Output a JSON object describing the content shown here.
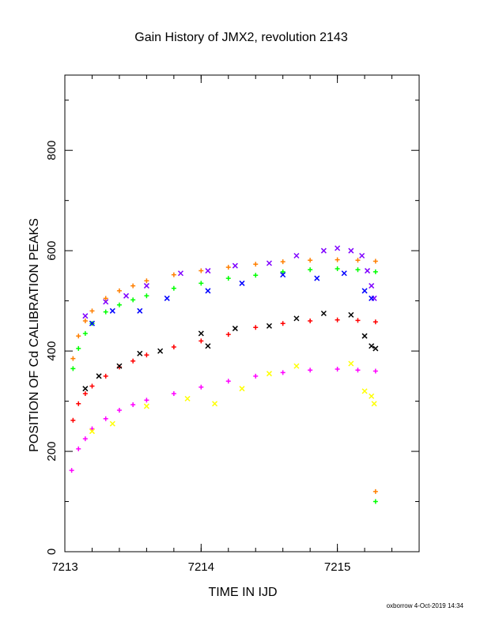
{
  "chart_data": {
    "type": "scatter",
    "title": "Gain History of JMX2, revolution 2143",
    "xlabel": "TIME IN IJD",
    "ylabel": "POSITION OF Cd CALIBRATION PEAKS",
    "footer": "oxborrow  4-Oct-2019 14:34",
    "xlim": [
      7213,
      7215.6
    ],
    "ylim": [
      0,
      950
    ],
    "xticks": [
      7213,
      7214,
      7215
    ],
    "yticks": [
      0,
      200,
      400,
      600,
      800
    ],
    "grid": false,
    "legend": "none",
    "series": [
      {
        "color": "#ff7f00",
        "marker": "+",
        "x": [
          7213.06,
          7213.1,
          7213.15,
          7213.2,
          7213.3,
          7213.4,
          7213.5,
          7213.6,
          7213.8,
          7214.0,
          7214.2,
          7214.4,
          7214.6,
          7214.8,
          7215.0,
          7215.15,
          7215.28
        ],
        "y": [
          385,
          430,
          460,
          480,
          505,
          520,
          530,
          540,
          552,
          560,
          567,
          573,
          578,
          581,
          582,
          581,
          579
        ]
      },
      {
        "color": "#7f00ff",
        "marker": "x",
        "x": [
          7213.15,
          7213.3,
          7213.45,
          7213.6,
          7213.85,
          7214.05,
          7214.25,
          7214.5,
          7214.7,
          7214.9,
          7215.0,
          7215.1,
          7215.18,
          7215.22,
          7215.25,
          7215.27
        ],
        "y": [
          470,
          498,
          510,
          530,
          555,
          560,
          570,
          575,
          590,
          600,
          605,
          600,
          590,
          560,
          530,
          505
        ]
      },
      {
        "color": "#00ff00",
        "marker": "+",
        "x": [
          7213.06,
          7213.1,
          7213.15,
          7213.2,
          7213.3,
          7213.4,
          7213.5,
          7213.6,
          7213.8,
          7214.0,
          7214.2,
          7214.4,
          7214.6,
          7214.8,
          7215.0,
          7215.15,
          7215.28
        ],
        "y": [
          365,
          405,
          435,
          455,
          478,
          492,
          502,
          510,
          525,
          535,
          545,
          551,
          558,
          562,
          564,
          562,
          558
        ]
      },
      {
        "color": "#0000ff",
        "marker": "x",
        "x": [
          7213.2,
          7213.35,
          7213.55,
          7213.75,
          7214.05,
          7214.3,
          7214.6,
          7214.85,
          7215.05,
          7215.2,
          7215.25
        ],
        "y": [
          455,
          480,
          480,
          505,
          520,
          535,
          552,
          545,
          555,
          520,
          505
        ]
      },
      {
        "color": "#ff0000",
        "marker": "+",
        "x": [
          7213.06,
          7213.1,
          7213.15,
          7213.2,
          7213.3,
          7213.4,
          7213.5,
          7213.6,
          7213.8,
          7214.0,
          7214.2,
          7214.4,
          7214.6,
          7214.8,
          7215.0,
          7215.15,
          7215.28
        ],
        "y": [
          262,
          295,
          315,
          330,
          350,
          368,
          380,
          392,
          408,
          420,
          433,
          447,
          455,
          460,
          462,
          461,
          458
        ]
      },
      {
        "color": "#000000",
        "marker": "x",
        "x": [
          7213.15,
          7213.25,
          7213.4,
          7213.55,
          7213.7,
          7214.0,
          7214.05,
          7214.25,
          7214.5,
          7214.7,
          7214.9,
          7215.1,
          7215.2,
          7215.25,
          7215.28
        ],
        "y": [
          325,
          350,
          370,
          395,
          400,
          435,
          410,
          445,
          450,
          465,
          475,
          472,
          430,
          410,
          405
        ]
      },
      {
        "color": "#ff00ff",
        "marker": "+",
        "x": [
          7213.05,
          7213.1,
          7213.15,
          7213.2,
          7213.3,
          7213.4,
          7213.5,
          7213.6,
          7213.8,
          7214.0,
          7214.2,
          7214.4,
          7214.6,
          7214.8,
          7215.0,
          7215.15,
          7215.28
        ],
        "y": [
          162,
          205,
          225,
          245,
          265,
          282,
          293,
          302,
          315,
          328,
          340,
          350,
          357,
          362,
          364,
          362,
          360
        ]
      },
      {
        "color": "#ffff00",
        "marker": "x",
        "x": [
          7213.2,
          7213.35,
          7213.6,
          7213.9,
          7214.1,
          7214.3,
          7214.5,
          7214.7,
          7215.1,
          7215.2,
          7215.25,
          7215.27
        ],
        "y": [
          240,
          255,
          290,
          305,
          295,
          325,
          355,
          370,
          375,
          320,
          310,
          295
        ]
      },
      {
        "color": "#ff7f00",
        "marker": "+",
        "x": [
          7215.28
        ],
        "y": [
          120
        ]
      },
      {
        "color": "#00ff00",
        "marker": "+",
        "x": [
          7215.28
        ],
        "y": [
          100
        ]
      }
    ]
  }
}
